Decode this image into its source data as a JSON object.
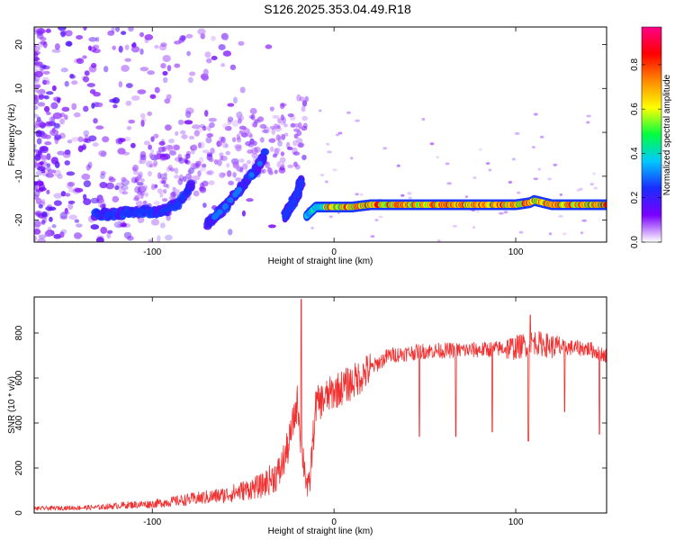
{
  "title": "S126.2025.353.04.49.R18",
  "chart_data": [
    {
      "type": "heatmap",
      "name": "spectrogram",
      "xlabel": "Height of straight line (km)",
      "ylabel": "Frequency (Hz)",
      "xlim": [
        -165,
        150
      ],
      "ylim": [
        -25,
        24
      ],
      "xticks": [
        -100,
        0,
        100
      ],
      "yticks": [
        -20,
        -10,
        0,
        10,
        20
      ],
      "colorbar": {
        "label": "Normalized spectral amplitude",
        "range": [
          0.0,
          0.97
        ],
        "ticks": [
          0.0,
          0.2,
          0.4,
          0.6,
          0.8
        ],
        "tick_labels": [
          "0.0",
          "0.2",
          "0.4",
          "0.6",
          "0.8"
        ],
        "colors": [
          "#ffffff",
          "#7a00ff",
          "#1a2cff",
          "#00c8ff",
          "#00ff40",
          "#ffff00",
          "#ff8800",
          "#ff0000",
          "#ff0088"
        ]
      },
      "ridges": [
        {
          "x": [
            -132,
            -110,
            -95,
            -85,
            -78
          ],
          "y": [
            -19,
            -18,
            -18,
            -16,
            -12
          ],
          "amp": 0.25
        },
        {
          "x": [
            -70,
            -60,
            -50,
            -42,
            -38
          ],
          "y": [
            -21,
            -17,
            -12,
            -8,
            -5
          ],
          "amp": 0.3
        },
        {
          "x": [
            -27,
            -20,
            -18
          ],
          "y": [
            -19,
            -14,
            -11
          ],
          "amp": 0.25
        },
        {
          "x": [
            -15,
            -10,
            0,
            10,
            20,
            40,
            60,
            80,
            100,
            108,
            110,
            120,
            140,
            150
          ],
          "y": [
            -19,
            -17,
            -17,
            -17,
            -16.5,
            -16.5,
            -16.5,
            -16.5,
            -16.5,
            -16,
            -15.5,
            -16.5,
            -16.5,
            -16.5
          ],
          "amp": 0.8
        }
      ]
    },
    {
      "type": "line",
      "name": "snr",
      "xlabel": "Height of straight line (km)",
      "ylabel": "SNR (10 * v/v)",
      "xlim": [
        -165,
        150
      ],
      "ylim": [
        0,
        960
      ],
      "xticks": [
        -100,
        0,
        100
      ],
      "yticks": [
        0,
        200,
        400,
        600,
        800
      ],
      "color": "#f03030",
      "trend": {
        "x": [
          -165,
          -130,
          -115,
          -100,
          -80,
          -60,
          -40,
          -30,
          -25,
          -22,
          -20,
          -18,
          -14,
          -10,
          0,
          10,
          20,
          30,
          50,
          80,
          100,
          110,
          120,
          140,
          150
        ],
        "y": [
          20,
          25,
          35,
          40,
          60,
          80,
          120,
          180,
          300,
          420,
          500,
          300,
          80,
          480,
          540,
          580,
          640,
          700,
          720,
          725,
          735,
          760,
          740,
          730,
          700
        ]
      },
      "dips": [
        {
          "x": 47,
          "y": 340
        },
        {
          "x": 67,
          "y": 340
        },
        {
          "x": 87,
          "y": 360
        },
        {
          "x": 107,
          "y": 320
        },
        {
          "x": 127,
          "y": 450
        },
        {
          "x": 146,
          "y": 350
        }
      ],
      "peaks": [
        {
          "x": -18,
          "y": 950
        },
        {
          "x": 108,
          "y": 880
        }
      ]
    }
  ]
}
